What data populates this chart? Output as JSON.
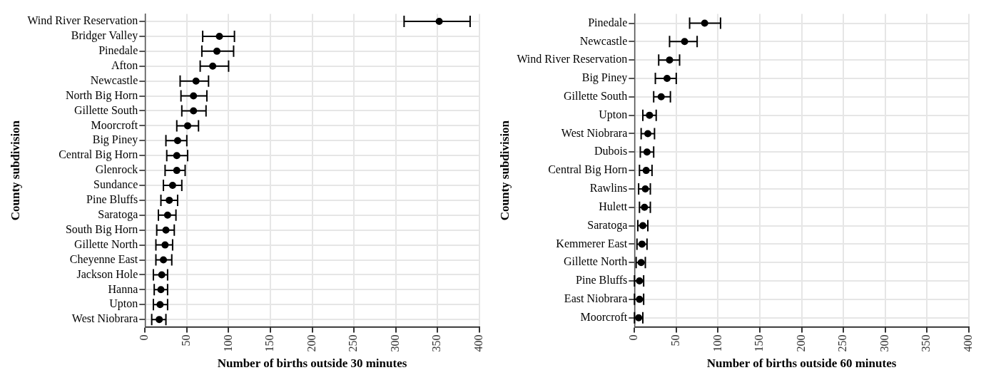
{
  "chart_data": [
    {
      "type": "scatter",
      "orientation": "horizontal",
      "xlabel": "Number of births outside 30 minutes",
      "ylabel": "County subdivision",
      "categories": [
        "Wind River Reservation",
        "Bridger Valley",
        "Pinedale",
        "Afton",
        "Newcastle",
        "North Big Horn",
        "Gillette South",
        "Moorcroft",
        "Big Piney",
        "Central Big Horn",
        "Glenrock",
        "Sundance",
        "Pine Bluffs",
        "Saratoga",
        "South Big Horn",
        "Gillette North",
        "Cheyenne East",
        "Jackson Hole",
        "Hanna",
        "Upton",
        "West Niobrara"
      ],
      "series": [
        {
          "color": "#000000",
          "values": [
            352,
            89,
            86,
            81,
            61,
            58,
            58,
            51,
            39,
            38,
            38,
            33,
            29,
            27,
            25,
            24,
            22,
            20,
            19,
            18,
            17
          ],
          "errors": [
            [
              310,
              389
            ],
            [
              69,
              107
            ],
            [
              68,
              106
            ],
            [
              66,
              100
            ],
            [
              42,
              76
            ],
            [
              43,
              74
            ],
            [
              44,
              73
            ],
            [
              38,
              64
            ],
            [
              25,
              50
            ],
            [
              26,
              51
            ],
            [
              24,
              48
            ],
            [
              22,
              44
            ],
            [
              19,
              39
            ],
            [
              16,
              37
            ],
            [
              14,
              35
            ],
            [
              13,
              33
            ],
            [
              13,
              32
            ],
            [
              10,
              27
            ],
            [
              11,
              27
            ],
            [
              10,
              27
            ],
            [
              8,
              25
            ]
          ]
        }
      ],
      "xlim": [
        0,
        400
      ],
      "xticks": [
        0,
        50,
        100,
        150,
        200,
        250,
        300,
        350,
        400
      ],
      "grid": true,
      "legend": false,
      "marker": "circle"
    },
    {
      "type": "scatter",
      "orientation": "horizontal",
      "xlabel": "Number of births outside 60 minutes",
      "ylabel": "County subdivision",
      "categories": [
        "Pinedale",
        "Newcastle",
        "Wind River Reservation",
        "Big Piney",
        "Gillette South",
        "Upton",
        "West Niobrara",
        "Dubois",
        "Central Big Horn",
        "Rawlins",
        "Hulett",
        "Saratoga",
        "Kemmerer East",
        "Gillette North",
        "Pine Bluffs",
        "East Niobrara",
        "Moorcroft"
      ],
      "series": [
        {
          "color": "#000000",
          "values": [
            84,
            60,
            42,
            39,
            32,
            18,
            16,
            15,
            14,
            13,
            12,
            10,
            9,
            8,
            6,
            6,
            5
          ],
          "errors": [
            [
              66,
              103
            ],
            [
              42,
              75
            ],
            [
              29,
              54
            ],
            [
              25,
              50
            ],
            [
              23,
              43
            ],
            [
              10,
              26
            ],
            [
              8,
              24
            ],
            [
              7,
              23
            ],
            [
              6,
              21
            ],
            [
              5,
              19
            ],
            [
              6,
              19
            ],
            [
              4,
              16
            ],
            [
              3,
              15
            ],
            [
              2,
              13
            ],
            [
              0,
              11
            ],
            [
              0,
              11
            ],
            [
              0,
              10
            ]
          ]
        }
      ],
      "xlim": [
        0,
        400
      ],
      "xticks": [
        0,
        50,
        100,
        150,
        200,
        250,
        300,
        350,
        400
      ],
      "grid": true,
      "legend": false,
      "marker": "circle"
    }
  ]
}
